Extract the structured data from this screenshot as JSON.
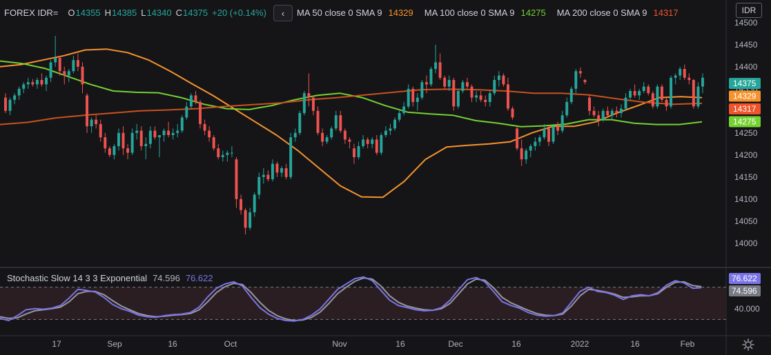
{
  "header": {
    "symbol": "FOREX IDR=",
    "open_label": "O",
    "open": "14355",
    "high_label": "H",
    "high": "14385",
    "low_label": "L",
    "low": "14340",
    "close_label": "C",
    "close": "14375",
    "change": "+20 (+0.14%)",
    "collapse_icon": "chevron-left-icon",
    "currency": "IDR"
  },
  "moving_averages": [
    {
      "label": "MA 50 close 0 SMA 9",
      "value": "14329",
      "color": "#f7932e"
    },
    {
      "label": "MA 100 close 0 SMA 9",
      "value": "14275",
      "color": "#75d232"
    },
    {
      "label": "MA 200 close 0 SMA 9",
      "value": "14317",
      "color": "#f1542a"
    }
  ],
  "price_axis": {
    "ticks": [
      "14500",
      "14450",
      "14400",
      "14350",
      "14300",
      "14250",
      "14200",
      "14150",
      "14100",
      "14050",
      "14000"
    ],
    "badges": [
      {
        "value": "14375",
        "color": "#26a69a"
      },
      {
        "value": "14329",
        "color": "#f7932e"
      },
      {
        "value": "14317",
        "color": "#f1542a"
      },
      {
        "value": "14275",
        "color": "#75d232"
      }
    ]
  },
  "time_axis": {
    "labels": [
      "17",
      "Sep",
      "16",
      "Oct",
      "Nov",
      "16",
      "Dec",
      "16",
      "2022",
      "16",
      "Feb"
    ]
  },
  "stochastic": {
    "label": "Stochastic Slow 14 3 3 Exponential",
    "value1": "74.596",
    "value2": "76.622",
    "axis_label": "40.000",
    "upper_band": 80,
    "lower_band": 20,
    "color_k": "#7b74e8",
    "color_d": "#9598a1"
  },
  "settings_icon": "gear-icon",
  "chart_data": {
    "type": "candlestick",
    "ylim": [
      13970,
      14520
    ],
    "colors": {
      "up": "#26a69a",
      "down": "#ef5350",
      "background": "#151518",
      "grid": "#2a2e39"
    },
    "candles": [
      [
        14330,
        14340,
        14295,
        14300
      ],
      [
        14300,
        14330,
        14290,
        14325
      ],
      [
        14325,
        14340,
        14315,
        14335
      ],
      [
        14335,
        14355,
        14325,
        14350
      ],
      [
        14350,
        14365,
        14340,
        14360
      ],
      [
        14360,
        14375,
        14350,
        14365
      ],
      [
        14365,
        14372,
        14355,
        14360
      ],
      [
        14360,
        14375,
        14350,
        14370
      ],
      [
        14370,
        14385,
        14355,
        14360
      ],
      [
        14360,
        14380,
        14345,
        14375
      ],
      [
        14375,
        14415,
        14365,
        14410
      ],
      [
        14410,
        14470,
        14400,
        14420
      ],
      [
        14420,
        14425,
        14380,
        14390
      ],
      [
        14390,
        14400,
        14360,
        14380
      ],
      [
        14380,
        14395,
        14365,
        14390
      ],
      [
        14390,
        14425,
        14385,
        14415
      ],
      [
        14415,
        14430,
        14390,
        14400
      ],
      [
        14400,
        14410,
        14340,
        14360
      ],
      [
        14335,
        14340,
        14250,
        14265
      ],
      [
        14265,
        14285,
        14250,
        14280
      ],
      [
        14280,
        14290,
        14260,
        14270
      ],
      [
        14270,
        14280,
        14230,
        14240
      ],
      [
        14240,
        14250,
        14205,
        14215
      ],
      [
        14215,
        14220,
        14195,
        14200
      ],
      [
        14200,
        14225,
        14190,
        14220
      ],
      [
        14220,
        14260,
        14210,
        14250
      ],
      [
        14250,
        14265,
        14200,
        14215
      ],
      [
        14215,
        14225,
        14190,
        14205
      ],
      [
        14205,
        14260,
        14200,
        14250
      ],
      [
        14250,
        14270,
        14235,
        14255
      ],
      [
        14255,
        14265,
        14210,
        14220
      ],
      [
        14220,
        14240,
        14190,
        14225
      ],
      [
        14225,
        14265,
        14215,
        14255
      ],
      [
        14255,
        14265,
        14235,
        14240
      ],
      [
        14240,
        14245,
        14195,
        14245
      ],
      [
        14245,
        14260,
        14230,
        14255
      ],
      [
        14255,
        14275,
        14240,
        14245
      ],
      [
        14245,
        14260,
        14235,
        14250
      ],
      [
        14250,
        14270,
        14240,
        14255
      ],
      [
        14255,
        14290,
        14250,
        14285
      ],
      [
        14285,
        14320,
        14280,
        14310
      ],
      [
        14310,
        14340,
        14305,
        14335
      ],
      [
        14335,
        14345,
        14315,
        14320
      ],
      [
        14320,
        14325,
        14260,
        14270
      ],
      [
        14270,
        14280,
        14245,
        14255
      ],
      [
        14255,
        14265,
        14230,
        14240
      ],
      [
        14240,
        14245,
        14210,
        14215
      ],
      [
        14215,
        14225,
        14190,
        14195
      ],
      [
        14195,
        14210,
        14185,
        14200
      ],
      [
        14200,
        14210,
        14185,
        14205
      ],
      [
        14205,
        14220,
        14195,
        14205
      ],
      [
        14190,
        14195,
        14080,
        14100
      ],
      [
        14100,
        14110,
        14065,
        14075
      ],
      [
        14075,
        14080,
        14020,
        14035
      ],
      [
        14035,
        14080,
        14030,
        14070
      ],
      [
        14070,
        14115,
        14060,
        14110
      ],
      [
        14110,
        14160,
        14100,
        14150
      ],
      [
        14150,
        14170,
        14135,
        14155
      ],
      [
        14155,
        14165,
        14140,
        14145
      ],
      [
        14145,
        14190,
        14140,
        14180
      ],
      [
        14180,
        14185,
        14150,
        14160
      ],
      [
        14160,
        14175,
        14150,
        14170
      ],
      [
        14170,
        14180,
        14145,
        14150
      ],
      [
        14150,
        14250,
        14145,
        14240
      ],
      [
        14240,
        14260,
        14230,
        14250
      ],
      [
        14250,
        14300,
        14245,
        14295
      ],
      [
        14295,
        14345,
        14290,
        14340
      ],
      [
        14340,
        14385,
        14310,
        14330
      ],
      [
        14330,
        14335,
        14290,
        14300
      ],
      [
        14300,
        14310,
        14245,
        14250
      ],
      [
        14250,
        14260,
        14220,
        14230
      ],
      [
        14230,
        14245,
        14225,
        14240
      ],
      [
        14240,
        14265,
        14235,
        14260
      ],
      [
        14260,
        14300,
        14255,
        14290
      ],
      [
        14290,
        14300,
        14250,
        14255
      ],
      [
        14255,
        14260,
        14225,
        14235
      ],
      [
        14235,
        14240,
        14215,
        14230
      ],
      [
        14215,
        14225,
        14180,
        14195
      ],
      [
        14195,
        14230,
        14190,
        14220
      ],
      [
        14220,
        14245,
        14215,
        14235
      ],
      [
        14235,
        14240,
        14215,
        14225
      ],
      [
        14225,
        14240,
        14215,
        14235
      ],
      [
        14235,
        14245,
        14200,
        14205
      ],
      [
        14205,
        14250,
        14200,
        14245
      ],
      [
        14245,
        14265,
        14240,
        14255
      ],
      [
        14255,
        14270,
        14245,
        14260
      ],
      [
        14260,
        14285,
        14255,
        14280
      ],
      [
        14280,
        14300,
        14275,
        14295
      ],
      [
        14295,
        14320,
        14290,
        14310
      ],
      [
        14310,
        14360,
        14305,
        14350
      ],
      [
        14350,
        14355,
        14310,
        14320
      ],
      [
        14320,
        14340,
        14300,
        14330
      ],
      [
        14330,
        14370,
        14325,
        14365
      ],
      [
        14365,
        14380,
        14340,
        14360
      ],
      [
        14360,
        14400,
        14355,
        14395
      ],
      [
        14395,
        14450,
        14385,
        14410
      ],
      [
        14410,
        14430,
        14370,
        14375
      ],
      [
        14375,
        14380,
        14350,
        14355
      ],
      [
        14355,
        14380,
        14345,
        14370
      ],
      [
        14370,
        14375,
        14300,
        14310
      ],
      [
        14310,
        14350,
        14305,
        14345
      ],
      [
        14345,
        14370,
        14340,
        14365
      ],
      [
        14365,
        14375,
        14350,
        14355
      ],
      [
        14355,
        14360,
        14320,
        14330
      ],
      [
        14330,
        14345,
        14320,
        14335
      ],
      [
        14335,
        14345,
        14320,
        14325
      ],
      [
        14325,
        14335,
        14310,
        14320
      ],
      [
        14320,
        14345,
        14310,
        14340
      ],
      [
        14340,
        14380,
        14335,
        14370
      ],
      [
        14370,
        14390,
        14355,
        14380
      ],
      [
        14380,
        14385,
        14355,
        14360
      ],
      [
        14360,
        14375,
        14300,
        14305
      ],
      [
        14305,
        14310,
        14280,
        14285
      ],
      [
        14260,
        14265,
        14210,
        14215
      ],
      [
        14215,
        14235,
        14175,
        14190
      ],
      [
        14190,
        14215,
        14180,
        14210
      ],
      [
        14210,
        14225,
        14195,
        14220
      ],
      [
        14220,
        14240,
        14210,
        14230
      ],
      [
        14230,
        14245,
        14220,
        14240
      ],
      [
        14240,
        14270,
        14235,
        14260
      ],
      [
        14260,
        14265,
        14220,
        14230
      ],
      [
        14230,
        14270,
        14225,
        14265
      ],
      [
        14265,
        14275,
        14245,
        14255
      ],
      [
        14255,
        14300,
        14250,
        14290
      ],
      [
        14290,
        14330,
        14285,
        14320
      ],
      [
        14320,
        14355,
        14315,
        14350
      ],
      [
        14350,
        14395,
        14340,
        14390
      ],
      [
        14390,
        14398,
        14375,
        14385
      ],
      [
        14370,
        14372,
        14360,
        14365
      ],
      [
        14330,
        14335,
        14290,
        14300
      ],
      [
        14300,
        14310,
        14285,
        14290
      ],
      [
        14290,
        14300,
        14265,
        14280
      ],
      [
        14280,
        14305,
        14275,
        14300
      ],
      [
        14300,
        14310,
        14285,
        14290
      ],
      [
        14290,
        14305,
        14280,
        14300
      ],
      [
        14300,
        14310,
        14285,
        14295
      ],
      [
        14295,
        14315,
        14285,
        14305
      ],
      [
        14305,
        14340,
        14300,
        14330
      ],
      [
        14330,
        14350,
        14325,
        14345
      ],
      [
        14345,
        14360,
        14330,
        14335
      ],
      [
        14335,
        14350,
        14325,
        14345
      ],
      [
        14345,
        14365,
        14340,
        14355
      ],
      [
        14355,
        14360,
        14335,
        14340
      ],
      [
        14340,
        14345,
        14305,
        14310
      ],
      [
        14310,
        14360,
        14305,
        14355
      ],
      [
        14355,
        14360,
        14320,
        14325
      ],
      [
        14325,
        14330,
        14300,
        14310
      ],
      [
        14310,
        14380,
        14305,
        14375
      ],
      [
        14375,
        14385,
        14360,
        14380
      ],
      [
        14380,
        14400,
        14370,
        14395
      ],
      [
        14395,
        14405,
        14370,
        14375
      ],
      [
        14375,
        14385,
        14360,
        14370
      ],
      [
        14370,
        14372,
        14305,
        14310
      ],
      [
        14310,
        14365,
        14305,
        14355
      ],
      [
        14355,
        14385,
        14340,
        14375
      ]
    ],
    "ma50": [
      14400,
      14405,
      14415,
      14425,
      14438,
      14440,
      14432,
      14415,
      14390,
      14362,
      14335,
      14305,
      14275,
      14245,
      14210,
      14170,
      14130,
      14105,
      14104,
      14140,
      14190,
      14218,
      14222,
      14225,
      14230,
      14250,
      14265,
      14265,
      14275,
      14295,
      14312,
      14330,
      14332,
      14330
    ],
    "ma100": [
      14413,
      14407,
      14396,
      14378,
      14360,
      14345,
      14342,
      14341,
      14330,
      14315,
      14305,
      14303,
      14312,
      14325,
      14335,
      14340,
      14330,
      14312,
      14297,
      14293,
      14290,
      14278,
      14272,
      14264,
      14266,
      14270,
      14280,
      14280,
      14272,
      14269,
      14269,
      14275
    ],
    "ma200": [
      14269,
      14274,
      14284,
      14290,
      14295,
      14300,
      14302,
      14305,
      14310,
      14314,
      14318,
      14325,
      14330,
      14336,
      14342,
      14348,
      14349,
      14348,
      14345,
      14340,
      14340,
      14336,
      14327,
      14319,
      14315,
      14317
    ],
    "stoch_k": [
      22,
      18,
      27,
      38,
      40,
      39,
      41,
      46,
      60,
      76,
      74,
      71,
      61,
      48,
      40,
      35,
      28,
      25,
      24,
      27,
      29,
      30,
      33,
      43,
      62,
      78,
      86,
      90,
      82,
      61,
      42,
      30,
      22,
      18,
      17,
      20,
      28,
      40,
      58,
      76,
      86,
      96,
      99,
      92,
      74,
      56,
      46,
      42,
      38,
      36,
      37,
      42,
      56,
      76,
      94,
      98,
      90,
      72,
      53,
      46,
      41,
      33,
      28,
      26,
      27,
      32,
      52,
      72,
      80,
      72,
      70,
      65,
      57,
      64,
      66,
      64,
      70,
      84,
      92,
      88,
      78,
      79
    ],
    "stoch_d": [
      25,
      22,
      23,
      30,
      36,
      38,
      40,
      43,
      53,
      68,
      72,
      72,
      66,
      55,
      45,
      38,
      31,
      27,
      25,
      26,
      28,
      29,
      31,
      38,
      53,
      70,
      81,
      87,
      85,
      70,
      52,
      37,
      27,
      21,
      18,
      19,
      24,
      34,
      50,
      68,
      80,
      91,
      97,
      95,
      82,
      64,
      52,
      45,
      41,
      38,
      37,
      40,
      50,
      68,
      86,
      95,
      93,
      79,
      61,
      51,
      44,
      37,
      31,
      28,
      27,
      30,
      45,
      64,
      76,
      74,
      71,
      67,
      61,
      62,
      64,
      64,
      68,
      80,
      89,
      90,
      83,
      81
    ]
  }
}
